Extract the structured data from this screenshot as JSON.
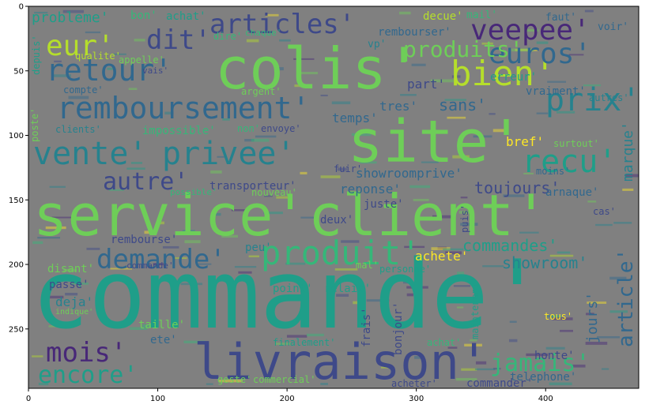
{
  "palette": {
    "background": "#808080",
    "colors": [
      "#3e4989",
      "#31688e",
      "#26828e",
      "#1f9e89",
      "#35b779",
      "#6ece58",
      "#b5de2b",
      "#fde725",
      "#482878"
    ]
  },
  "axes": {
    "x_ticks": [
      {
        "value": 0,
        "label": "0"
      },
      {
        "value": 100,
        "label": "100"
      },
      {
        "value": 200,
        "label": "200"
      },
      {
        "value": 300,
        "label": "300"
      },
      {
        "value": 400,
        "label": "400"
      }
    ],
    "y_ticks": [
      {
        "value": 0,
        "label": "0"
      },
      {
        "value": 50,
        "label": "50"
      },
      {
        "value": 100,
        "label": "100"
      },
      {
        "value": 150,
        "label": "150"
      },
      {
        "value": 200,
        "label": "200"
      },
      {
        "value": 250,
        "label": "250"
      }
    ],
    "x_range": [
      0,
      472
    ],
    "y_range": [
      0,
      296
    ]
  },
  "words": [
    {
      "text": "commande'",
      "color": "#1f9e89"
    },
    {
      "text": "service'",
      "color": "#6ece58"
    },
    {
      "text": "client'",
      "color": "#6ece58"
    },
    {
      "text": "colis'",
      "color": "#6ece58"
    },
    {
      "text": "site'",
      "color": "#6ece58"
    },
    {
      "text": "livraison'",
      "color": "#3e4989"
    },
    {
      "text": "vente'",
      "color": "#26828e"
    },
    {
      "text": "privee'",
      "color": "#26828e"
    },
    {
      "text": "remboursement'",
      "color": "#31688e"
    },
    {
      "text": "produit'",
      "color": "#35b779"
    },
    {
      "text": "articles'",
      "color": "#3e4989"
    },
    {
      "text": "demande'",
      "color": "#31688e"
    },
    {
      "text": "bien'",
      "color": "#b5de2b"
    },
    {
      "text": "prix'",
      "color": "#26828e"
    },
    {
      "text": "recu'",
      "color": "#1f9e89"
    },
    {
      "text": "retour'",
      "color": "#31688e"
    },
    {
      "text": "euros'",
      "color": "#31688e"
    },
    {
      "text": "veepee'",
      "color": "#482878"
    },
    {
      "text": "dit'",
      "color": "#3e4989"
    },
    {
      "text": "eur'",
      "color": "#b5de2b"
    },
    {
      "text": "produits'",
      "color": "#6ece58"
    },
    {
      "text": "autre'",
      "color": "#3e4989"
    },
    {
      "text": "mois'",
      "color": "#482878"
    },
    {
      "text": "encore'",
      "color": "#1f9e89"
    },
    {
      "text": "jamais'",
      "color": "#35b779"
    },
    {
      "text": "article'",
      "color": "#31688e"
    },
    {
      "text": "commandes'",
      "color": "#1f9e89"
    },
    {
      "text": "showroom'",
      "color": "#26828e"
    },
    {
      "text": "toujours'",
      "color": "#3e4989"
    },
    {
      "text": "showroomprive'",
      "color": "#31688e"
    },
    {
      "text": "sans'",
      "color": "#31688e"
    },
    {
      "text": "tres'",
      "color": "#31688e"
    },
    {
      "text": "part'",
      "color": "#3e4989"
    },
    {
      "text": "temps'",
      "color": "#31688e"
    },
    {
      "text": "reponse'",
      "color": "#31688e"
    },
    {
      "text": "transporteur'",
      "color": "#3e4989"
    },
    {
      "text": "achete'",
      "color": "#fde725"
    },
    {
      "text": "marque'",
      "color": "#26828e"
    },
    {
      "text": "jours'",
      "color": "#31688e"
    },
    {
      "text": "probleme'",
      "color": "#1f9e89"
    },
    {
      "text": "bon'",
      "color": "#35b779"
    },
    {
      "text": "achat'",
      "color": "#1f9e89"
    },
    {
      "text": "rembourser'",
      "color": "#31688e"
    },
    {
      "text": "decue'",
      "color": "#b5de2b"
    },
    {
      "text": "mail'",
      "color": "#35b779"
    },
    {
      "text": "faut'",
      "color": "#31688e"
    },
    {
      "text": "voir'",
      "color": "#31688e"
    },
    {
      "text": "vp'",
      "color": "#26828e"
    },
    {
      "text": "depuis'",
      "color": "#1f9e89"
    },
    {
      "text": "qualite'",
      "color": "#b5de2b"
    },
    {
      "text": "appelle'",
      "color": "#6ece58"
    },
    {
      "text": "vais'",
      "color": "#3e4989"
    },
    {
      "text": "compte'",
      "color": "#31688e"
    },
    {
      "text": "argent'",
      "color": "#6ece58"
    },
    {
      "text": "clients'",
      "color": "#26828e"
    },
    {
      "text": "impossible'",
      "color": "#35b779"
    },
    {
      "text": "non'",
      "color": "#35b779"
    },
    {
      "text": "envoye'",
      "color": "#3e4989"
    },
    {
      "text": "bref'",
      "color": "#fde725"
    },
    {
      "text": "surtout'",
      "color": "#6ece58"
    },
    {
      "text": "moins'",
      "color": "#31688e"
    },
    {
      "text": "arnaque'",
      "color": "#31688e"
    },
    {
      "text": "vraiment'",
      "color": "#31688e"
    },
    {
      "text": "erreur'",
      "color": "#1f9e89"
    },
    {
      "text": "rembourse'",
      "color": "#3e4989"
    },
    {
      "text": "disant'",
      "color": "#6ece58"
    },
    {
      "text": "passe'",
      "color": "#3e4989"
    },
    {
      "text": "point'",
      "color": "#1f9e89"
    },
    {
      "text": "relais'",
      "color": "#1f9e89"
    },
    {
      "text": "deux'",
      "color": "#3e4989"
    },
    {
      "text": "juste'",
      "color": "#3e4989"
    },
    {
      "text": "deja'",
      "color": "#26828e"
    },
    {
      "text": "frais'",
      "color": "#3e4989"
    },
    {
      "text": "bonjour'",
      "color": "#3e4989"
    },
    {
      "text": "taille'",
      "color": "#6ece58"
    },
    {
      "text": "ete'",
      "color": "#31688e"
    },
    {
      "text": "commander'",
      "color": "#3e4989"
    },
    {
      "text": "telephone'",
      "color": "#31688e"
    },
    {
      "text": "honte'",
      "color": "#3e4989"
    },
    {
      "text": "peu'",
      "color": "#26828e"
    },
    {
      "text": "fuir'",
      "color": "#3e4989"
    },
    {
      "text": "puis'",
      "color": "#3e4989"
    },
    {
      "text": "nouveau'",
      "color": "#6ece58"
    },
    {
      "text": "dire'",
      "color": "#35b779"
    },
    {
      "text": "chaque'",
      "color": "#35b779"
    },
    {
      "text": "poste'",
      "color": "#6ece58"
    },
    {
      "text": "finalement'",
      "color": "#1f9e89"
    },
    {
      "text": "achat'",
      "color": "#35b779"
    },
    {
      "text": "tous'",
      "color": "#fde725"
    },
    {
      "text": "maintenant'",
      "color": "#1f9e89"
    },
    {
      "text": "acheter'",
      "color": "#3e4989"
    },
    {
      "text": "geste'",
      "color": "#6ece58"
    },
    {
      "text": "commercial'",
      "color": "#6ece58"
    },
    {
      "text": "autres'",
      "color": "#26828e"
    },
    {
      "text": "cas'",
      "color": "#3e4989"
    },
    {
      "text": "mal'",
      "color": "#6ece58"
    },
    {
      "text": "personne'",
      "color": "#1f9e89"
    },
    {
      "text": "indique'",
      "color": "#6ece58"
    },
    {
      "text": "possible'",
      "color": "#35b779"
    },
    {
      "text": "commande'",
      "color": "#3e4989"
    }
  ]
}
